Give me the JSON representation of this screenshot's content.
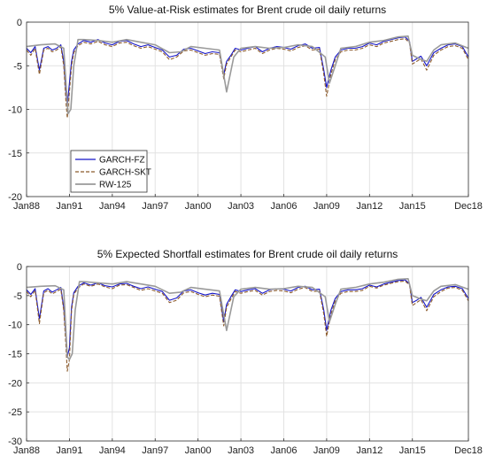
{
  "chart_data": [
    {
      "type": "line",
      "title": "5% Value-at-Risk estimates for Brent crude oil daily returns",
      "xlabel": "",
      "ylabel": "",
      "ylim": [
        -20,
        0
      ],
      "yticks": [
        0,
        -5,
        -10,
        -15,
        -20
      ],
      "xlim": [
        1988.0,
        2018.92
      ],
      "xticks": [
        {
          "t": 1988.0,
          "label": "Jan88"
        },
        {
          "t": 1991.0,
          "label": "Jan91"
        },
        {
          "t": 1994.0,
          "label": "Jan94"
        },
        {
          "t": 1997.0,
          "label": "Jan97"
        },
        {
          "t": 2000.0,
          "label": "Jan00"
        },
        {
          "t": 2003.0,
          "label": "Jan03"
        },
        {
          "t": 2006.0,
          "label": "Jan06"
        },
        {
          "t": 2009.0,
          "label": "Jan09"
        },
        {
          "t": 2012.0,
          "label": "Jan12"
        },
        {
          "t": 2015.0,
          "label": "Jan15"
        },
        {
          "t": 2018.92,
          "label": "Dec18"
        }
      ],
      "grid": true,
      "legend_position": "bottom-left",
      "series": [
        {
          "name": "GARCH-FZ",
          "color": "#1515c8",
          "style": "solid",
          "x": [
            1988.0,
            1988.3,
            1988.6,
            1988.9,
            1989.2,
            1989.5,
            1989.8,
            1990.1,
            1990.4,
            1990.6,
            1990.75,
            1990.85,
            1991.0,
            1991.15,
            1991.3,
            1991.6,
            1992.0,
            1992.5,
            1993.0,
            1993.5,
            1994.0,
            1994.5,
            1995.0,
            1995.5,
            1996.0,
            1996.5,
            1997.0,
            1997.5,
            1998.0,
            1998.5,
            1999.0,
            1999.5,
            2000.0,
            2000.5,
            2001.0,
            2001.5,
            2001.8,
            2002.0,
            2002.3,
            2002.6,
            2003.0,
            2003.5,
            2004.0,
            2004.5,
            2005.0,
            2005.5,
            2006.0,
            2006.5,
            2007.0,
            2007.5,
            2008.0,
            2008.5,
            2008.8,
            2009.0,
            2009.3,
            2009.6,
            2010.0,
            2010.5,
            2011.0,
            2011.5,
            2012.0,
            2012.5,
            2013.0,
            2013.5,
            2014.0,
            2014.5,
            2014.8,
            2015.0,
            2015.3,
            2015.6,
            2016.0,
            2016.5,
            2017.0,
            2017.5,
            2018.0,
            2018.5,
            2018.92
          ],
          "y": [
            -3.0,
            -3.5,
            -2.8,
            -5.5,
            -3.0,
            -2.8,
            -3.2,
            -3.0,
            -2.6,
            -4.5,
            -8.0,
            -9.5,
            -7.0,
            -4.5,
            -3.2,
            -2.5,
            -2.1,
            -2.3,
            -2.0,
            -2.4,
            -2.6,
            -2.2,
            -2.1,
            -2.5,
            -2.8,
            -2.6,
            -2.9,
            -3.2,
            -4.0,
            -3.8,
            -3.1,
            -3.0,
            -3.3,
            -3.6,
            -3.4,
            -3.5,
            -6.0,
            -4.5,
            -3.8,
            -3.0,
            -3.2,
            -3.0,
            -2.8,
            -3.4,
            -3.0,
            -2.8,
            -2.9,
            -3.1,
            -2.7,
            -2.5,
            -3.0,
            -2.9,
            -5.5,
            -7.5,
            -5.5,
            -4.0,
            -3.2,
            -3.0,
            -3.0,
            -2.8,
            -2.4,
            -2.6,
            -2.2,
            -2.0,
            -1.8,
            -1.7,
            -2.2,
            -4.5,
            -4.2,
            -3.9,
            -5.0,
            -3.5,
            -3.0,
            -2.6,
            -2.5,
            -2.8,
            -4.0
          ]
        },
        {
          "name": "GARCH-SKT",
          "color": "#8b5a2b",
          "style": "dashed",
          "x": [
            1988.0,
            1988.3,
            1988.6,
            1988.9,
            1989.2,
            1989.5,
            1989.8,
            1990.1,
            1990.4,
            1990.6,
            1990.75,
            1990.85,
            1991.0,
            1991.15,
            1991.3,
            1991.6,
            1992.0,
            1992.5,
            1993.0,
            1993.5,
            1994.0,
            1994.5,
            1995.0,
            1995.5,
            1996.0,
            1996.5,
            1997.0,
            1997.5,
            1998.0,
            1998.5,
            1999.0,
            1999.5,
            2000.0,
            2000.5,
            2001.0,
            2001.5,
            2001.8,
            2002.0,
            2002.3,
            2002.6,
            2003.0,
            2003.5,
            2004.0,
            2004.5,
            2005.0,
            2005.5,
            2006.0,
            2006.5,
            2007.0,
            2007.5,
            2008.0,
            2008.5,
            2008.8,
            2009.0,
            2009.3,
            2009.6,
            2010.0,
            2010.5,
            2011.0,
            2011.5,
            2012.0,
            2012.5,
            2013.0,
            2013.5,
            2014.0,
            2014.5,
            2014.8,
            2015.0,
            2015.3,
            2015.6,
            2016.0,
            2016.5,
            2017.0,
            2017.5,
            2018.0,
            2018.5,
            2018.92
          ],
          "y": [
            -3.2,
            -3.8,
            -3.0,
            -6.0,
            -3.2,
            -3.0,
            -3.4,
            -3.2,
            -2.8,
            -5.0,
            -9.0,
            -11.0,
            -8.0,
            -5.0,
            -3.5,
            -2.7,
            -2.3,
            -2.5,
            -2.2,
            -2.6,
            -2.8,
            -2.4,
            -2.3,
            -2.7,
            -3.0,
            -2.8,
            -3.1,
            -3.4,
            -4.3,
            -4.0,
            -3.3,
            -3.2,
            -3.5,
            -3.8,
            -3.6,
            -3.7,
            -6.5,
            -4.8,
            -4.0,
            -3.2,
            -3.4,
            -3.2,
            -3.0,
            -3.6,
            -3.2,
            -3.0,
            -3.1,
            -3.3,
            -2.9,
            -2.7,
            -3.2,
            -3.1,
            -6.0,
            -8.5,
            -6.0,
            -4.3,
            -3.4,
            -3.2,
            -3.2,
            -3.0,
            -2.6,
            -2.8,
            -2.4,
            -2.2,
            -2.0,
            -1.9,
            -2.4,
            -4.8,
            -4.5,
            -4.2,
            -5.5,
            -3.8,
            -3.2,
            -2.8,
            -2.7,
            -3.0,
            -4.3
          ]
        },
        {
          "name": "RW-125",
          "color": "#9a9a9a",
          "style": "solid",
          "x": [
            1988.0,
            1989.0,
            1990.0,
            1990.6,
            1990.9,
            1991.1,
            1991.3,
            1991.6,
            1992.0,
            1993.0,
            1994.0,
            1995.0,
            1996.0,
            1997.0,
            1998.0,
            1998.8,
            1999.5,
            2000.5,
            2001.5,
            2002.0,
            2002.5,
            2003.0,
            2004.0,
            2005.0,
            2006.0,
            2007.0,
            2008.0,
            2008.9,
            2009.2,
            2009.6,
            2010.0,
            2011.0,
            2012.0,
            2013.0,
            2014.0,
            2014.7,
            2015.0,
            2015.5,
            2016.0,
            2016.5,
            2017.0,
            2018.0,
            2018.92
          ],
          "y": [
            -2.8,
            -2.6,
            -2.5,
            -3.0,
            -10.5,
            -10.0,
            -5.0,
            -2.0,
            -2.0,
            -2.1,
            -2.3,
            -2.0,
            -2.3,
            -2.6,
            -3.5,
            -3.4,
            -2.8,
            -3.0,
            -3.2,
            -8.0,
            -4.0,
            -3.0,
            -2.8,
            -3.0,
            -2.9,
            -2.6,
            -2.8,
            -4.0,
            -7.0,
            -5.0,
            -3.0,
            -2.8,
            -2.3,
            -2.1,
            -1.7,
            -1.6,
            -3.8,
            -4.2,
            -4.5,
            -3.2,
            -2.6,
            -2.4,
            -3.0
          ]
        }
      ]
    },
    {
      "type": "line",
      "title": "5% Expected Shortfall estimates for Brent crude oil daily returns",
      "xlabel": "",
      "ylabel": "",
      "ylim": [
        -30,
        0
      ],
      "yticks": [
        0,
        -5,
        -10,
        -15,
        -20,
        -25,
        -30
      ],
      "xlim": [
        1988.0,
        2018.92
      ],
      "xticks": [
        {
          "t": 1988.0,
          "label": "Jan88"
        },
        {
          "t": 1991.0,
          "label": "Jan91"
        },
        {
          "t": 1994.0,
          "label": "Jan94"
        },
        {
          "t": 1997.0,
          "label": "Jan97"
        },
        {
          "t": 2000.0,
          "label": "Jan00"
        },
        {
          "t": 2003.0,
          "label": "Jan03"
        },
        {
          "t": 2006.0,
          "label": "Jan06"
        },
        {
          "t": 2009.0,
          "label": "Jan09"
        },
        {
          "t": 2012.0,
          "label": "Jan12"
        },
        {
          "t": 2015.0,
          "label": "Jan15"
        },
        {
          "t": 2018.92,
          "label": "Dec18"
        }
      ],
      "grid": true,
      "series": [
        {
          "name": "GARCH-FZ",
          "color": "#1515c8",
          "style": "solid",
          "x": [
            1988.0,
            1988.3,
            1988.6,
            1988.9,
            1989.2,
            1989.5,
            1989.8,
            1990.1,
            1990.4,
            1990.6,
            1990.75,
            1990.85,
            1991.0,
            1991.15,
            1991.3,
            1991.6,
            1992.0,
            1992.5,
            1993.0,
            1993.5,
            1994.0,
            1994.5,
            1995.0,
            1995.5,
            1996.0,
            1996.5,
            1997.0,
            1997.5,
            1998.0,
            1998.5,
            1999.0,
            1999.5,
            2000.0,
            2000.5,
            2001.0,
            2001.5,
            2001.8,
            2002.0,
            2002.3,
            2002.6,
            2003.0,
            2003.5,
            2004.0,
            2004.5,
            2005.0,
            2005.5,
            2006.0,
            2006.5,
            2007.0,
            2007.5,
            2008.0,
            2008.5,
            2008.8,
            2009.0,
            2009.3,
            2009.6,
            2010.0,
            2010.5,
            2011.0,
            2011.5,
            2012.0,
            2012.5,
            2013.0,
            2013.5,
            2014.0,
            2014.5,
            2014.8,
            2015.0,
            2015.3,
            2015.6,
            2016.0,
            2016.5,
            2017.0,
            2017.5,
            2018.0,
            2018.5,
            2018.92
          ],
          "y": [
            -4.0,
            -4.8,
            -3.8,
            -9.0,
            -4.2,
            -3.8,
            -4.4,
            -4.0,
            -3.6,
            -7.0,
            -12.0,
            -15.5,
            -14.0,
            -7.0,
            -4.5,
            -3.4,
            -2.8,
            -3.2,
            -2.8,
            -3.3,
            -3.5,
            -3.0,
            -2.9,
            -3.4,
            -3.8,
            -3.5,
            -3.9,
            -4.3,
            -5.8,
            -5.4,
            -4.2,
            -4.0,
            -4.5,
            -4.9,
            -4.6,
            -4.8,
            -9.5,
            -6.5,
            -5.2,
            -4.0,
            -4.3,
            -4.0,
            -3.8,
            -4.6,
            -4.0,
            -3.8,
            -3.9,
            -4.2,
            -3.6,
            -3.4,
            -4.0,
            -3.9,
            -7.5,
            -11.0,
            -7.5,
            -5.5,
            -4.3,
            -4.0,
            -4.0,
            -3.8,
            -3.2,
            -3.5,
            -3.0,
            -2.7,
            -2.4,
            -2.3,
            -3.0,
            -6.2,
            -5.8,
            -5.3,
            -7.0,
            -4.8,
            -4.0,
            -3.5,
            -3.4,
            -3.8,
            -5.5
          ]
        },
        {
          "name": "GARCH-SKT",
          "color": "#8b5a2b",
          "style": "dashed",
          "x": [
            1988.0,
            1988.3,
            1988.6,
            1988.9,
            1989.2,
            1989.5,
            1989.8,
            1990.1,
            1990.4,
            1990.6,
            1990.75,
            1990.85,
            1991.0,
            1991.15,
            1991.3,
            1991.6,
            1992.0,
            1992.5,
            1993.0,
            1993.5,
            1994.0,
            1994.5,
            1995.0,
            1995.5,
            1996.0,
            1996.5,
            1997.0,
            1997.5,
            1998.0,
            1998.5,
            1999.0,
            1999.5,
            2000.0,
            2000.5,
            2001.0,
            2001.5,
            2001.8,
            2002.0,
            2002.3,
            2002.6,
            2003.0,
            2003.5,
            2004.0,
            2004.5,
            2005.0,
            2005.5,
            2006.0,
            2006.5,
            2007.0,
            2007.5,
            2008.0,
            2008.5,
            2008.8,
            2009.0,
            2009.3,
            2009.6,
            2010.0,
            2010.5,
            2011.0,
            2011.5,
            2012.0,
            2012.5,
            2013.0,
            2013.5,
            2014.0,
            2014.5,
            2014.8,
            2015.0,
            2015.3,
            2015.6,
            2016.0,
            2016.5,
            2017.0,
            2017.5,
            2018.0,
            2018.5,
            2018.92
          ],
          "y": [
            -4.3,
            -5.2,
            -4.1,
            -9.8,
            -4.5,
            -4.1,
            -4.7,
            -4.3,
            -3.9,
            -7.6,
            -13.5,
            -18.0,
            -16.0,
            -7.6,
            -4.8,
            -3.7,
            -3.0,
            -3.4,
            -3.0,
            -3.5,
            -3.8,
            -3.2,
            -3.1,
            -3.6,
            -4.1,
            -3.8,
            -4.2,
            -4.6,
            -6.2,
            -5.8,
            -4.5,
            -4.3,
            -4.8,
            -5.2,
            -4.9,
            -5.1,
            -10.2,
            -7.0,
            -5.6,
            -4.3,
            -4.6,
            -4.3,
            -4.1,
            -4.9,
            -4.3,
            -4.1,
            -4.2,
            -4.5,
            -3.9,
            -3.6,
            -4.3,
            -4.2,
            -8.2,
            -12.0,
            -8.2,
            -5.9,
            -4.6,
            -4.3,
            -4.3,
            -4.1,
            -3.4,
            -3.7,
            -3.2,
            -2.9,
            -2.6,
            -2.5,
            -3.2,
            -6.7,
            -6.2,
            -5.7,
            -7.6,
            -5.2,
            -4.3,
            -3.7,
            -3.6,
            -4.1,
            -5.9
          ]
        },
        {
          "name": "RW-125",
          "color": "#9a9a9a",
          "style": "solid",
          "x": [
            1988.0,
            1989.0,
            1990.0,
            1990.6,
            1990.85,
            1991.0,
            1991.2,
            1991.4,
            1991.7,
            1992.0,
            1993.0,
            1994.0,
            1995.0,
            1996.0,
            1997.0,
            1998.0,
            1998.8,
            1999.5,
            2000.5,
            2001.5,
            2002.0,
            2002.5,
            2003.0,
            2004.0,
            2005.0,
            2006.0,
            2007.0,
            2008.0,
            2008.9,
            2009.2,
            2009.6,
            2010.0,
            2011.0,
            2012.0,
            2013.0,
            2014.0,
            2014.7,
            2015.0,
            2015.5,
            2016.0,
            2016.5,
            2017.0,
            2018.0,
            2018.92
          ],
          "y": [
            -3.6,
            -3.4,
            -3.3,
            -4.0,
            -15.5,
            -16.0,
            -15.0,
            -7.5,
            -2.6,
            -2.6,
            -2.8,
            -3.0,
            -2.6,
            -3.0,
            -3.4,
            -4.6,
            -4.4,
            -3.6,
            -3.9,
            -4.2,
            -11.0,
            -5.2,
            -3.9,
            -3.6,
            -3.9,
            -3.8,
            -3.4,
            -3.6,
            -5.2,
            -9.5,
            -6.5,
            -3.9,
            -3.6,
            -3.0,
            -2.7,
            -2.2,
            -2.1,
            -5.0,
            -5.5,
            -5.9,
            -4.2,
            -3.4,
            -3.1,
            -3.9
          ]
        }
      ]
    }
  ],
  "legend": {
    "entries": [
      {
        "label": "GARCH-FZ",
        "color": "#1515c8",
        "style": "solid"
      },
      {
        "label": "GARCH-SKT",
        "color": "#8b5a2b",
        "style": "dashed"
      },
      {
        "label": "RW-125",
        "color": "#9a9a9a",
        "style": "solid"
      }
    ]
  }
}
